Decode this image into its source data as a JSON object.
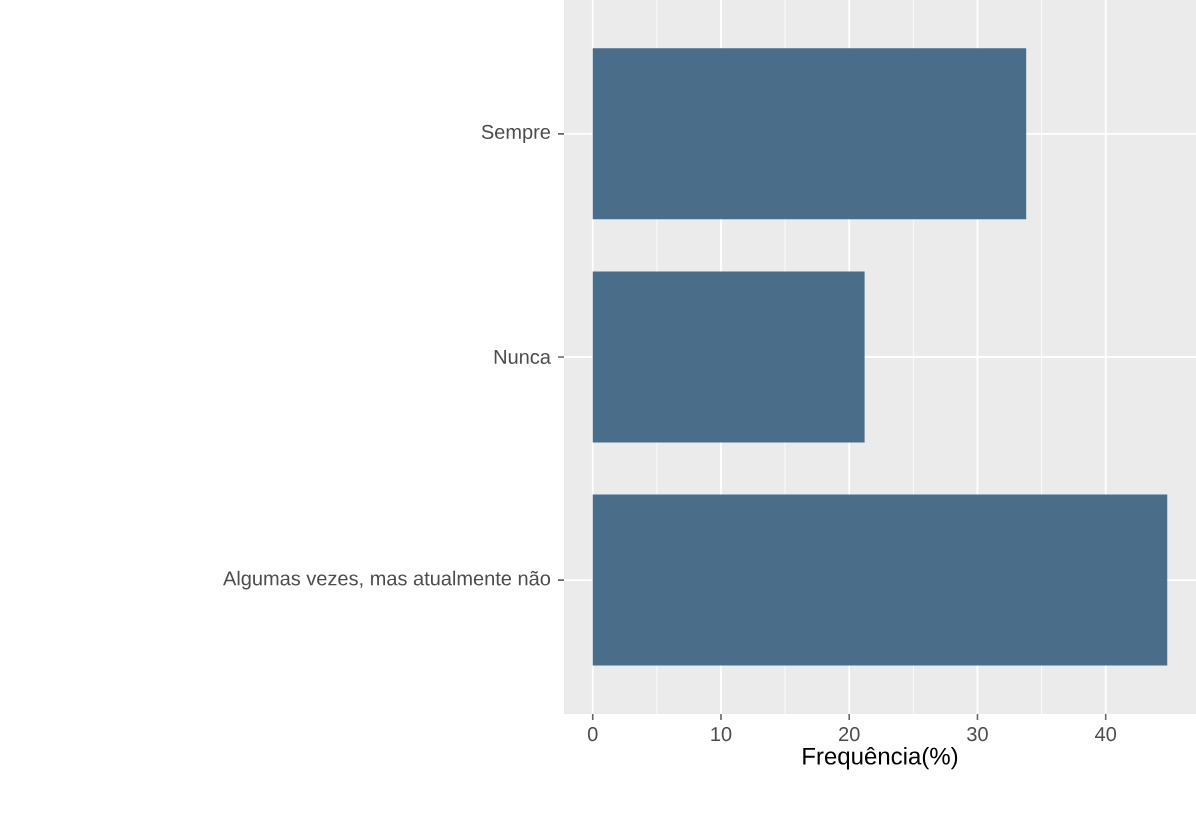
{
  "chart_data": {
    "type": "bar",
    "orientation": "horizontal",
    "xlabel": "Frequência(%)",
    "categories": [
      "Sempre",
      "Nunca",
      "Algumas vezes, mas atualmente não"
    ],
    "values": [
      33.8,
      21.2,
      44.8
    ],
    "color": "#4a6e8a",
    "xlim": [
      -2.24,
      47.04
    ],
    "xticks": [
      0,
      10,
      20,
      30,
      40
    ],
    "grid": true
  }
}
